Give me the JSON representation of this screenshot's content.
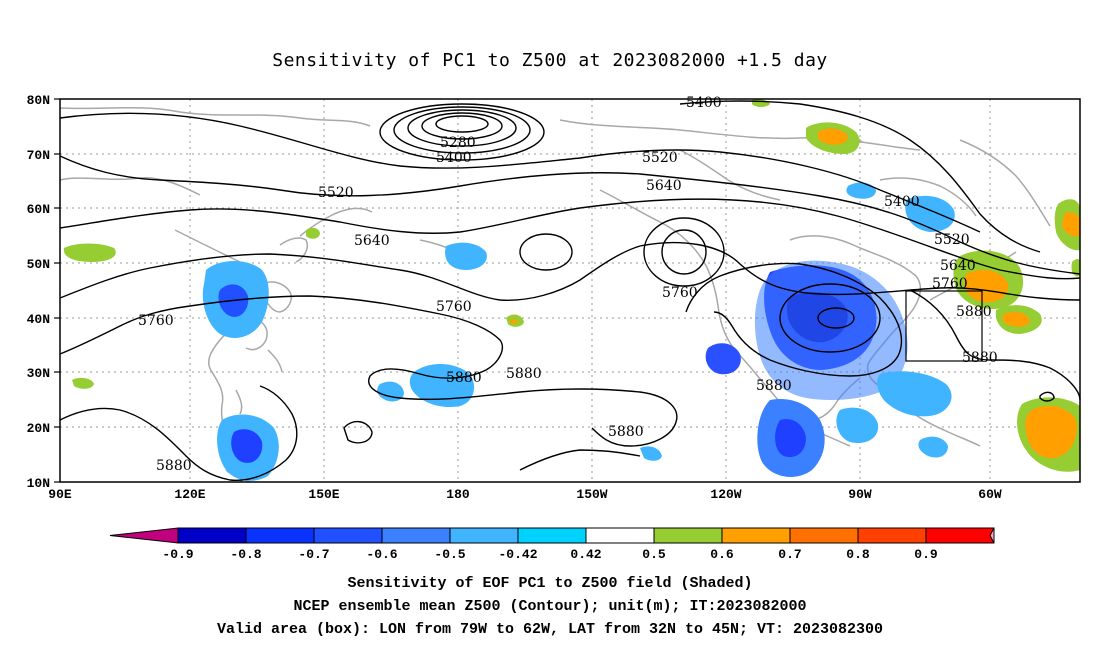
{
  "title": "Sensitivity of PC1 to Z500 at 2023082000 +1.5 day",
  "lat_labels": [
    "80N",
    "70N",
    "60N",
    "50N",
    "40N",
    "30N",
    "20N",
    "10N"
  ],
  "lon_labels": [
    "90E",
    "120E",
    "150E",
    "180",
    "150W",
    "120W",
    "90W",
    "60W"
  ],
  "contour_labels": [
    {
      "text": "5400",
      "name": "contour-label-5400-north"
    },
    {
      "text": "5280",
      "name": "contour-label-5280"
    },
    {
      "text": "5400",
      "name": "contour-label-5400-low"
    },
    {
      "text": "5520",
      "name": "contour-label-5520-mid"
    },
    {
      "text": "5520",
      "name": "contour-label-5520-west"
    },
    {
      "text": "5640",
      "name": "contour-label-5640-east"
    },
    {
      "text": "5640",
      "name": "contour-label-5640-west"
    },
    {
      "text": "5400",
      "name": "contour-label-5400-east"
    },
    {
      "text": "5520",
      "name": "contour-label-5520-east"
    },
    {
      "text": "5640",
      "name": "contour-label-5640-far-east"
    },
    {
      "text": "5760",
      "name": "contour-label-5760-far-east"
    },
    {
      "text": "5760",
      "name": "contour-label-5760-pacific"
    },
    {
      "text": "5760",
      "name": "contour-label-5760-mid"
    },
    {
      "text": "5760",
      "name": "contour-label-5760-west"
    },
    {
      "text": "5880",
      "name": "contour-label-5880-box"
    },
    {
      "text": "5880",
      "name": "contour-label-5880-east"
    },
    {
      "text": "5880",
      "name": "contour-label-5880-gulf"
    },
    {
      "text": "5880",
      "name": "contour-label-5880-dateline"
    },
    {
      "text": "5880",
      "name": "contour-label-5880-central"
    },
    {
      "text": "5880",
      "name": "contour-label-5880-south"
    },
    {
      "text": "5880",
      "name": "contour-label-5880-west"
    }
  ],
  "colorbar": {
    "labels": [
      "-0.9",
      "-0.8",
      "-0.7",
      "-0.6",
      "-0.5",
      "-0.42",
      "0.42",
      "0.5",
      "0.6",
      "0.7",
      "0.8",
      "0.9"
    ],
    "colors": [
      "#c0007f",
      "#0000c8",
      "#0a32ff",
      "#2050ff",
      "#3a80ff",
      "#40b4ff",
      "#00d2ff",
      "#ffffff",
      "#96cd32",
      "#ff9f00",
      "#ff7000",
      "#ff4000",
      "#ff0000",
      "#ff9ecf"
    ]
  },
  "captions": [
    "Sensitivity of EOF PC1 to Z500 field (Shaded)",
    "NCEP ensemble mean Z500 (Contour); unit(m); IT:2023082000",
    "Valid area (box): LON from 79W to 62W, LAT from 32N to 45N; VT: 2023082300"
  ]
}
